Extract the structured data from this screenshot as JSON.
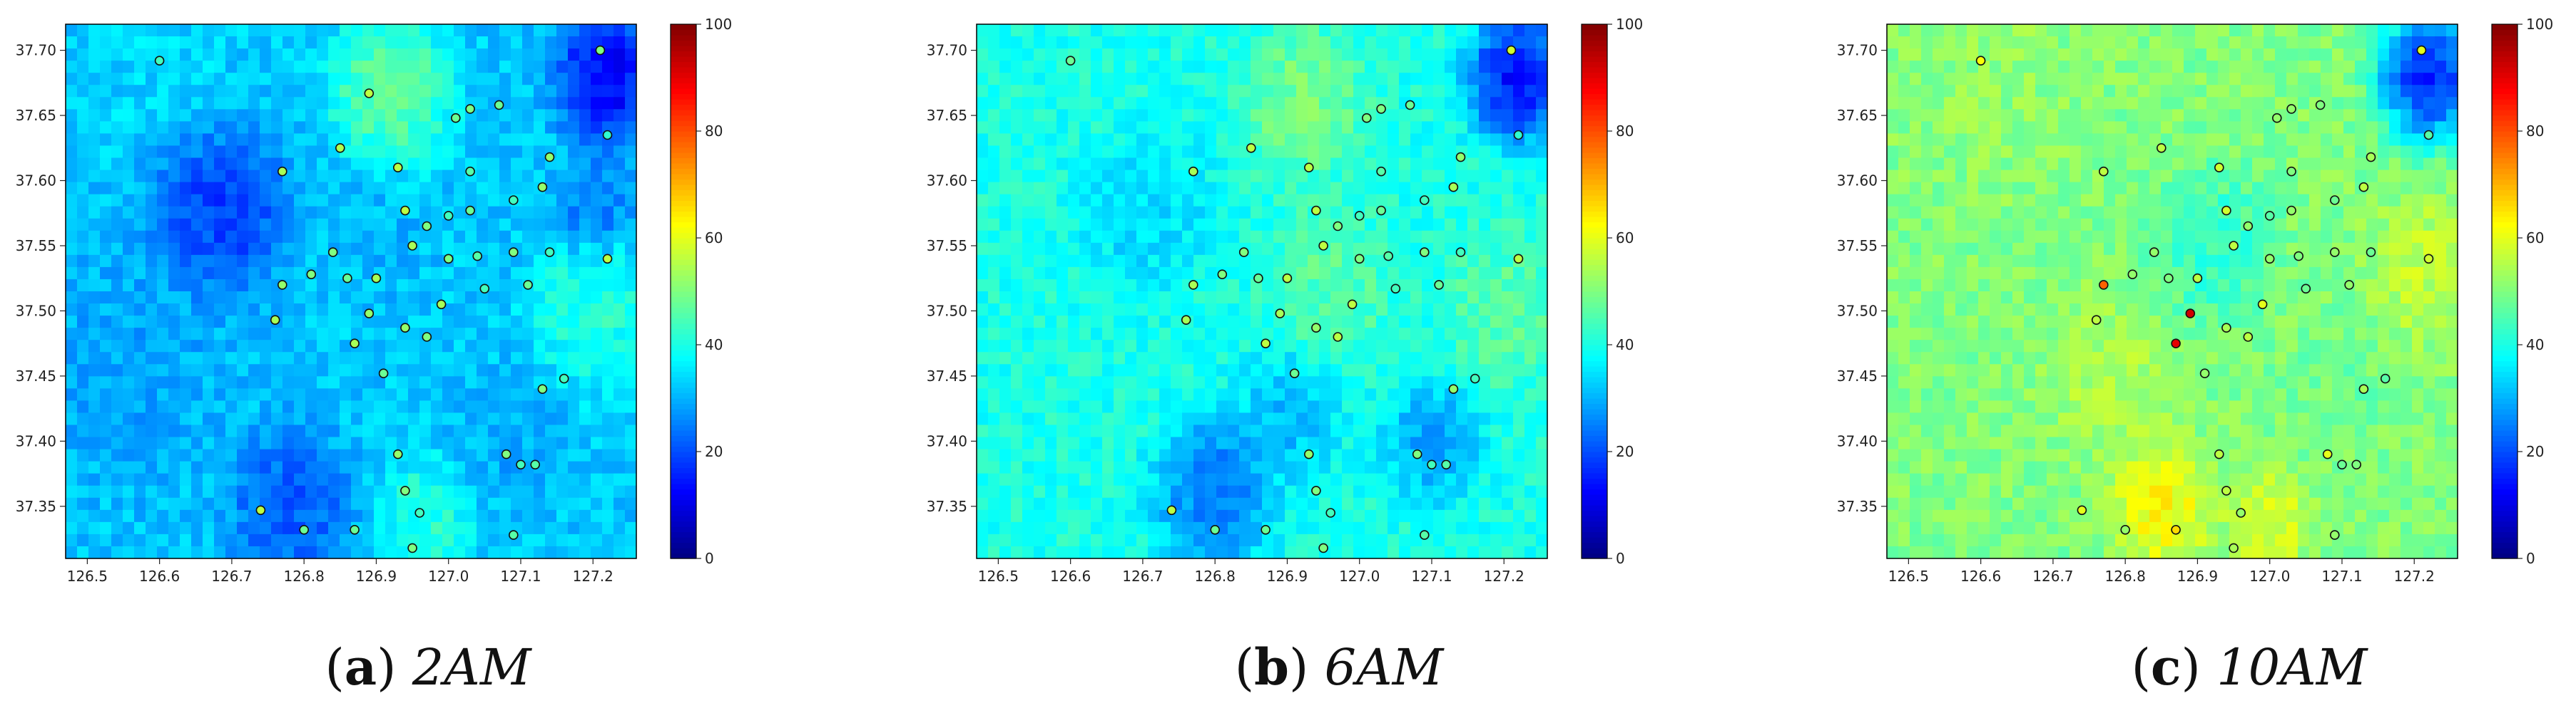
{
  "colors": {
    "frame": "#000000",
    "text": "#222222",
    "station_stroke": "#111111"
  },
  "colormap": "jet",
  "panels": [
    {
      "caption_letter": "a",
      "caption_open": "(",
      "caption_close": ")",
      "caption_time": "2AM",
      "base_level": 32,
      "highlight": []
    },
    {
      "caption_letter": "b",
      "caption_open": "(",
      "caption_close": ")",
      "caption_time": "6AM",
      "base_level": 40,
      "highlight": []
    },
    {
      "caption_letter": "c",
      "caption_open": "(",
      "caption_close": ")",
      "caption_time": "10AM",
      "base_level": 50,
      "highlight": [
        [
          126.89,
          37.5
        ],
        [
          126.87,
          37.48
        ]
      ]
    }
  ],
  "chart_data": [
    {
      "type": "heatmap",
      "title": "(a) 2AM",
      "xlim": [
        126.47,
        127.26
      ],
      "ylim": [
        37.31,
        37.72
      ],
      "xticks": [
        "126.5",
        "126.6",
        "126.7",
        "126.8",
        "126.9",
        "127.0",
        "127.1",
        "127.2"
      ],
      "yticks": [
        "37.35",
        "37.40",
        "37.45",
        "37.50",
        "37.55",
        "37.60",
        "37.65",
        "37.70"
      ],
      "colorbar": {
        "min": 0,
        "max": 100,
        "ticks": [
          "0",
          "20",
          "40",
          "60",
          "80",
          "100"
        ]
      },
      "regions": [
        {
          "x": 126.6,
          "y": 37.7,
          "value": 34,
          "r": 0.1
        },
        {
          "x": 126.68,
          "y": 37.58,
          "value": 14,
          "r": 0.07
        },
        {
          "x": 126.56,
          "y": 37.46,
          "value": 28,
          "r": 0.1
        },
        {
          "x": 126.78,
          "y": 37.35,
          "value": 18,
          "r": 0.06
        },
        {
          "x": 126.92,
          "y": 37.67,
          "value": 52,
          "r": 0.06
        },
        {
          "x": 127.22,
          "y": 37.68,
          "value": 6,
          "r": 0.05
        },
        {
          "x": 127.2,
          "y": 37.58,
          "value": 22,
          "r": 0.04
        },
        {
          "x": 127.2,
          "y": 37.5,
          "value": 44,
          "r": 0.06
        },
        {
          "x": 127.08,
          "y": 37.4,
          "value": 28,
          "r": 0.05
        },
        {
          "x": 126.97,
          "y": 37.34,
          "value": 44,
          "r": 0.05
        },
        {
          "x": 126.9,
          "y": 37.56,
          "value": 30,
          "r": 0.05
        }
      ],
      "stations": [
        {
          "x": 126.6,
          "y": 37.692,
          "value": 44
        },
        {
          "x": 126.89,
          "y": 37.667,
          "value": 56
        },
        {
          "x": 126.85,
          "y": 37.625,
          "value": 55
        },
        {
          "x": 126.93,
          "y": 37.61,
          "value": 56
        },
        {
          "x": 126.77,
          "y": 37.607,
          "value": 54
        },
        {
          "x": 127.01,
          "y": 37.648,
          "value": 48
        },
        {
          "x": 127.03,
          "y": 37.655,
          "value": 50
        },
        {
          "x": 127.07,
          "y": 37.658,
          "value": 48
        },
        {
          "x": 127.21,
          "y": 37.7,
          "value": 50
        },
        {
          "x": 127.22,
          "y": 37.635,
          "value": 42
        },
        {
          "x": 127.03,
          "y": 37.607,
          "value": 46
        },
        {
          "x": 127.14,
          "y": 37.618,
          "value": 52
        },
        {
          "x": 127.09,
          "y": 37.585,
          "value": 44
        },
        {
          "x": 127.13,
          "y": 37.595,
          "value": 52
        },
        {
          "x": 126.94,
          "y": 37.577,
          "value": 56
        },
        {
          "x": 126.97,
          "y": 37.565,
          "value": 50
        },
        {
          "x": 127.0,
          "y": 37.573,
          "value": 44
        },
        {
          "x": 127.03,
          "y": 37.577,
          "value": 48
        },
        {
          "x": 126.95,
          "y": 37.55,
          "value": 54
        },
        {
          "x": 126.84,
          "y": 37.545,
          "value": 50
        },
        {
          "x": 127.04,
          "y": 37.542,
          "value": 46
        },
        {
          "x": 127.09,
          "y": 37.545,
          "value": 50
        },
        {
          "x": 127.14,
          "y": 37.545,
          "value": 44
        },
        {
          "x": 127.22,
          "y": 37.54,
          "value": 56
        },
        {
          "x": 126.81,
          "y": 37.528,
          "value": 50
        },
        {
          "x": 126.86,
          "y": 37.525,
          "value": 48
        },
        {
          "x": 126.9,
          "y": 37.525,
          "value": 54
        },
        {
          "x": 127.0,
          "y": 37.54,
          "value": 50
        },
        {
          "x": 126.77,
          "y": 37.52,
          "value": 52
        },
        {
          "x": 127.05,
          "y": 37.517,
          "value": 44
        },
        {
          "x": 127.11,
          "y": 37.52,
          "value": 48
        },
        {
          "x": 126.99,
          "y": 37.505,
          "value": 54
        },
        {
          "x": 126.89,
          "y": 37.498,
          "value": 52
        },
        {
          "x": 126.76,
          "y": 37.493,
          "value": 54
        },
        {
          "x": 126.94,
          "y": 37.487,
          "value": 52
        },
        {
          "x": 126.97,
          "y": 37.48,
          "value": 50
        },
        {
          "x": 126.87,
          "y": 37.475,
          "value": 54
        },
        {
          "x": 126.91,
          "y": 37.452,
          "value": 48
        },
        {
          "x": 127.16,
          "y": 37.448,
          "value": 44
        },
        {
          "x": 127.13,
          "y": 37.44,
          "value": 50
        },
        {
          "x": 126.93,
          "y": 37.39,
          "value": 52
        },
        {
          "x": 127.08,
          "y": 37.39,
          "value": 50
        },
        {
          "x": 127.1,
          "y": 37.382,
          "value": 44
        },
        {
          "x": 127.12,
          "y": 37.382,
          "value": 46
        },
        {
          "x": 126.94,
          "y": 37.362,
          "value": 50
        },
        {
          "x": 126.74,
          "y": 37.347,
          "value": 56
        },
        {
          "x": 126.96,
          "y": 37.345,
          "value": 44
        },
        {
          "x": 126.8,
          "y": 37.332,
          "value": 48
        },
        {
          "x": 126.87,
          "y": 37.332,
          "value": 48
        },
        {
          "x": 127.09,
          "y": 37.328,
          "value": 46
        },
        {
          "x": 126.95,
          "y": 37.318,
          "value": 50
        }
      ]
    },
    {
      "type": "heatmap",
      "title": "(b) 6AM",
      "xlim": [
        126.47,
        127.26
      ],
      "ylim": [
        37.31,
        37.72
      ],
      "xticks": [
        "126.5",
        "126.6",
        "126.7",
        "126.8",
        "126.9",
        "127.0",
        "127.1",
        "127.2"
      ],
      "yticks": [
        "37.35",
        "37.40",
        "37.45",
        "37.50",
        "37.55",
        "37.60",
        "37.65",
        "37.70"
      ],
      "colorbar": {
        "min": 0,
        "max": 100,
        "ticks": [
          "0",
          "20",
          "40",
          "60",
          "80",
          "100"
        ]
      },
      "regions": [
        {
          "x": 126.6,
          "y": 37.69,
          "value": 40,
          "r": 0.1
        },
        {
          "x": 126.7,
          "y": 37.58,
          "value": 32,
          "r": 0.07
        },
        {
          "x": 126.8,
          "y": 37.36,
          "value": 20,
          "r": 0.06
        },
        {
          "x": 126.92,
          "y": 37.66,
          "value": 52,
          "r": 0.06
        },
        {
          "x": 127.22,
          "y": 37.68,
          "value": 6,
          "r": 0.05
        },
        {
          "x": 127.1,
          "y": 37.4,
          "value": 26,
          "r": 0.05
        },
        {
          "x": 127.2,
          "y": 37.5,
          "value": 48,
          "r": 0.06
        },
        {
          "x": 126.96,
          "y": 37.52,
          "value": 48,
          "r": 0.06
        },
        {
          "x": 126.9,
          "y": 37.42,
          "value": 28,
          "r": 0.05
        }
      ],
      "stations": [
        {
          "x": 126.6,
          "y": 37.692,
          "value": 48
        },
        {
          "x": 126.85,
          "y": 37.625,
          "value": 56
        },
        {
          "x": 126.93,
          "y": 37.61,
          "value": 56
        },
        {
          "x": 126.77,
          "y": 37.607,
          "value": 54
        },
        {
          "x": 127.01,
          "y": 37.648,
          "value": 50
        },
        {
          "x": 127.03,
          "y": 37.655,
          "value": 50
        },
        {
          "x": 127.07,
          "y": 37.658,
          "value": 48
        },
        {
          "x": 127.21,
          "y": 37.7,
          "value": 58
        },
        {
          "x": 127.22,
          "y": 37.635,
          "value": 42
        },
        {
          "x": 127.03,
          "y": 37.607,
          "value": 46
        },
        {
          "x": 127.14,
          "y": 37.618,
          "value": 52
        },
        {
          "x": 127.09,
          "y": 37.585,
          "value": 44
        },
        {
          "x": 127.13,
          "y": 37.595,
          "value": 54
        },
        {
          "x": 126.94,
          "y": 37.577,
          "value": 56
        },
        {
          "x": 126.97,
          "y": 37.565,
          "value": 50
        },
        {
          "x": 127.0,
          "y": 37.573,
          "value": 44
        },
        {
          "x": 127.03,
          "y": 37.577,
          "value": 48
        },
        {
          "x": 126.95,
          "y": 37.55,
          "value": 56
        },
        {
          "x": 126.84,
          "y": 37.545,
          "value": 50
        },
        {
          "x": 127.04,
          "y": 37.542,
          "value": 46
        },
        {
          "x": 127.09,
          "y": 37.545,
          "value": 50
        },
        {
          "x": 127.14,
          "y": 37.545,
          "value": 44
        },
        {
          "x": 127.22,
          "y": 37.54,
          "value": 56
        },
        {
          "x": 126.81,
          "y": 37.528,
          "value": 50
        },
        {
          "x": 126.86,
          "y": 37.525,
          "value": 48
        },
        {
          "x": 126.9,
          "y": 37.525,
          "value": 56
        },
        {
          "x": 127.0,
          "y": 37.54,
          "value": 50
        },
        {
          "x": 126.77,
          "y": 37.52,
          "value": 54
        },
        {
          "x": 127.05,
          "y": 37.517,
          "value": 44
        },
        {
          "x": 127.11,
          "y": 37.52,
          "value": 48
        },
        {
          "x": 126.99,
          "y": 37.505,
          "value": 56
        },
        {
          "x": 126.89,
          "y": 37.498,
          "value": 54
        },
        {
          "x": 126.76,
          "y": 37.493,
          "value": 54
        },
        {
          "x": 126.94,
          "y": 37.487,
          "value": 52
        },
        {
          "x": 126.97,
          "y": 37.48,
          "value": 56
        },
        {
          "x": 126.87,
          "y": 37.475,
          "value": 56
        },
        {
          "x": 126.91,
          "y": 37.452,
          "value": 48
        },
        {
          "x": 127.16,
          "y": 37.448,
          "value": 44
        },
        {
          "x": 127.13,
          "y": 37.44,
          "value": 52
        },
        {
          "x": 126.93,
          "y": 37.39,
          "value": 52
        },
        {
          "x": 127.08,
          "y": 37.39,
          "value": 50
        },
        {
          "x": 127.1,
          "y": 37.382,
          "value": 44
        },
        {
          "x": 127.12,
          "y": 37.382,
          "value": 46
        },
        {
          "x": 126.94,
          "y": 37.362,
          "value": 50
        },
        {
          "x": 126.74,
          "y": 37.347,
          "value": 56
        },
        {
          "x": 126.96,
          "y": 37.345,
          "value": 44
        },
        {
          "x": 126.8,
          "y": 37.332,
          "value": 48
        },
        {
          "x": 126.87,
          "y": 37.332,
          "value": 48
        },
        {
          "x": 127.09,
          "y": 37.328,
          "value": 46
        },
        {
          "x": 126.95,
          "y": 37.318,
          "value": 50
        }
      ]
    },
    {
      "type": "heatmap",
      "title": "(c) 10AM",
      "xlim": [
        126.47,
        127.26
      ],
      "ylim": [
        37.31,
        37.72
      ],
      "xticks": [
        "126.5",
        "126.6",
        "126.7",
        "126.8",
        "126.9",
        "127.0",
        "127.1",
        "127.2"
      ],
      "yticks": [
        "37.35",
        "37.40",
        "37.45",
        "37.50",
        "37.55",
        "37.60",
        "37.65",
        "37.70"
      ],
      "colorbar": {
        "min": 0,
        "max": 100,
        "ticks": [
          "0",
          "20",
          "40",
          "60",
          "80",
          "100"
        ]
      },
      "regions": [
        {
          "x": 126.6,
          "y": 37.69,
          "value": 52,
          "r": 0.1
        },
        {
          "x": 126.85,
          "y": 37.35,
          "value": 66,
          "r": 0.05
        },
        {
          "x": 127.0,
          "y": 37.34,
          "value": 62,
          "r": 0.04
        },
        {
          "x": 127.22,
          "y": 37.68,
          "value": 6,
          "r": 0.05
        },
        {
          "x": 127.22,
          "y": 37.53,
          "value": 58,
          "r": 0.06
        },
        {
          "x": 126.92,
          "y": 37.55,
          "value": 40,
          "r": 0.06
        },
        {
          "x": 126.78,
          "y": 37.45,
          "value": 56,
          "r": 0.06
        },
        {
          "x": 127.1,
          "y": 37.45,
          "value": 48,
          "r": 0.06
        }
      ],
      "stations": [
        {
          "x": 126.6,
          "y": 37.692,
          "value": 62
        },
        {
          "x": 126.85,
          "y": 37.625,
          "value": 56
        },
        {
          "x": 126.93,
          "y": 37.61,
          "value": 58
        },
        {
          "x": 126.77,
          "y": 37.607,
          "value": 56
        },
        {
          "x": 127.01,
          "y": 37.648,
          "value": 52
        },
        {
          "x": 127.03,
          "y": 37.655,
          "value": 52
        },
        {
          "x": 127.07,
          "y": 37.658,
          "value": 50
        },
        {
          "x": 127.21,
          "y": 37.7,
          "value": 60
        },
        {
          "x": 127.22,
          "y": 37.635,
          "value": 46
        },
        {
          "x": 127.03,
          "y": 37.607,
          "value": 50
        },
        {
          "x": 127.14,
          "y": 37.618,
          "value": 54
        },
        {
          "x": 127.09,
          "y": 37.585,
          "value": 48
        },
        {
          "x": 127.13,
          "y": 37.595,
          "value": 56
        },
        {
          "x": 126.94,
          "y": 37.577,
          "value": 58
        },
        {
          "x": 126.97,
          "y": 37.565,
          "value": 52
        },
        {
          "x": 127.0,
          "y": 37.573,
          "value": 46
        },
        {
          "x": 127.03,
          "y": 37.577,
          "value": 52
        },
        {
          "x": 126.95,
          "y": 37.55,
          "value": 56
        },
        {
          "x": 126.84,
          "y": 37.545,
          "value": 52
        },
        {
          "x": 127.04,
          "y": 37.542,
          "value": 50
        },
        {
          "x": 127.09,
          "y": 37.545,
          "value": 52
        },
        {
          "x": 127.14,
          "y": 37.545,
          "value": 48
        },
        {
          "x": 127.22,
          "y": 37.54,
          "value": 58
        },
        {
          "x": 126.81,
          "y": 37.528,
          "value": 52
        },
        {
          "x": 126.86,
          "y": 37.525,
          "value": 50
        },
        {
          "x": 126.9,
          "y": 37.525,
          "value": 56
        },
        {
          "x": 127.0,
          "y": 37.54,
          "value": 52
        },
        {
          "x": 126.77,
          "y": 37.52,
          "value": 78
        },
        {
          "x": 127.05,
          "y": 37.517,
          "value": 48
        },
        {
          "x": 127.11,
          "y": 37.52,
          "value": 52
        },
        {
          "x": 126.99,
          "y": 37.505,
          "value": 60
        },
        {
          "x": 126.89,
          "y": 37.498,
          "value": 92
        },
        {
          "x": 126.76,
          "y": 37.493,
          "value": 56
        },
        {
          "x": 126.94,
          "y": 37.487,
          "value": 54
        },
        {
          "x": 126.97,
          "y": 37.48,
          "value": 56
        },
        {
          "x": 126.87,
          "y": 37.475,
          "value": 90
        },
        {
          "x": 126.91,
          "y": 37.452,
          "value": 52
        },
        {
          "x": 127.16,
          "y": 37.448,
          "value": 46
        },
        {
          "x": 127.13,
          "y": 37.44,
          "value": 54
        },
        {
          "x": 126.93,
          "y": 37.39,
          "value": 56
        },
        {
          "x": 127.08,
          "y": 37.39,
          "value": 60
        },
        {
          "x": 127.1,
          "y": 37.382,
          "value": 48
        },
        {
          "x": 127.12,
          "y": 37.382,
          "value": 50
        },
        {
          "x": 126.94,
          "y": 37.362,
          "value": 56
        },
        {
          "x": 126.74,
          "y": 37.347,
          "value": 60
        },
        {
          "x": 126.96,
          "y": 37.345,
          "value": 52
        },
        {
          "x": 126.8,
          "y": 37.332,
          "value": 52
        },
        {
          "x": 126.87,
          "y": 37.332,
          "value": 66
        },
        {
          "x": 127.09,
          "y": 37.328,
          "value": 52
        },
        {
          "x": 126.95,
          "y": 37.318,
          "value": 54
        }
      ]
    }
  ]
}
